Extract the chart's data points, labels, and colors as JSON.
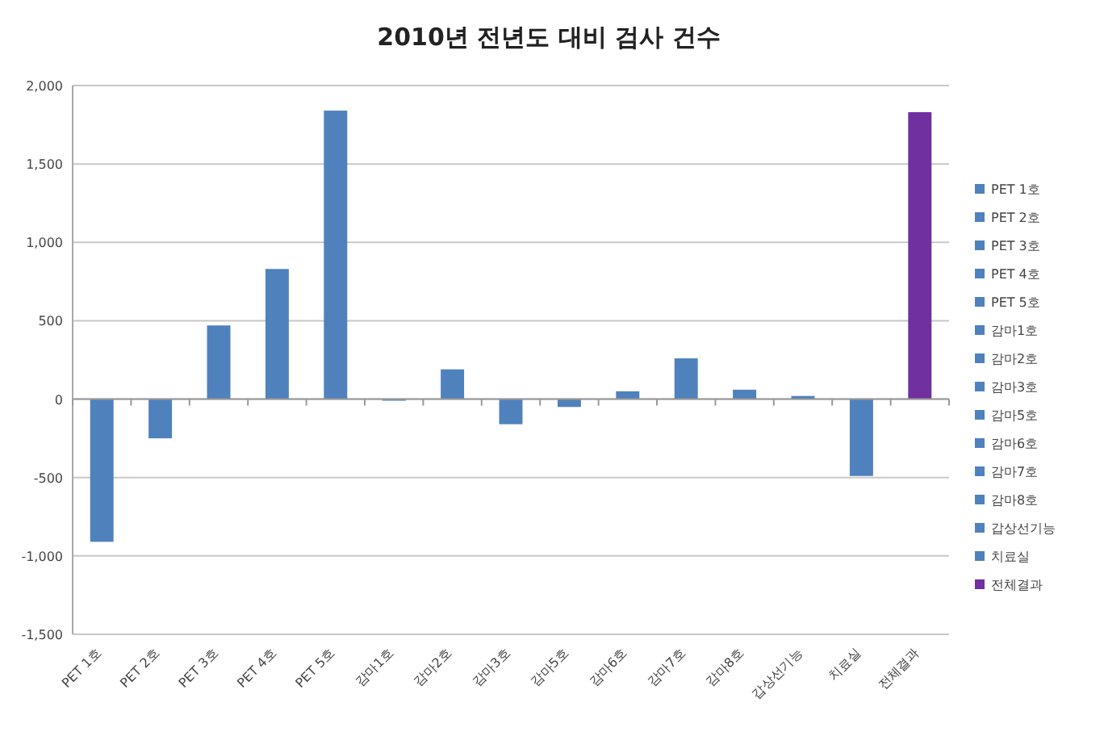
{
  "chart_data": {
    "type": "bar",
    "title": "2010년 전년도 대비 검사 건수",
    "categories": [
      "PET 1호",
      "PET 2호",
      "PET 3호",
      "PET 4호",
      "PET 5호",
      "감마1호",
      "감마2호",
      "감마3호",
      "감마5호",
      "감마6호",
      "감마7호",
      "감마8호",
      "갑상선기능",
      "치료실",
      "전체결과"
    ],
    "series": [
      {
        "name": "PET 1호",
        "color": "#4f81bd",
        "values": [
          -910,
          null,
          null,
          null,
          null,
          null,
          null,
          null,
          null,
          null,
          null,
          null,
          null,
          null,
          null
        ]
      },
      {
        "name": "PET 2호",
        "color": "#4f81bd",
        "values": [
          null,
          -250,
          null,
          null,
          null,
          null,
          null,
          null,
          null,
          null,
          null,
          null,
          null,
          null,
          null
        ]
      },
      {
        "name": "PET 3호",
        "color": "#4f81bd",
        "values": [
          null,
          null,
          470,
          null,
          null,
          null,
          null,
          null,
          null,
          null,
          null,
          null,
          null,
          null,
          null
        ]
      },
      {
        "name": "PET 4호",
        "color": "#4f81bd",
        "values": [
          null,
          null,
          null,
          830,
          null,
          null,
          null,
          null,
          null,
          null,
          null,
          null,
          null,
          null,
          null
        ]
      },
      {
        "name": "PET 5호",
        "color": "#4f81bd",
        "values": [
          null,
          null,
          null,
          null,
          1840,
          null,
          null,
          null,
          null,
          null,
          null,
          null,
          null,
          null,
          null
        ]
      },
      {
        "name": "감마1호",
        "color": "#4f81bd",
        "values": [
          null,
          null,
          null,
          null,
          null,
          -10,
          null,
          null,
          null,
          null,
          null,
          null,
          null,
          null,
          null
        ]
      },
      {
        "name": "감마2호",
        "color": "#4f81bd",
        "values": [
          null,
          null,
          null,
          null,
          null,
          null,
          190,
          null,
          null,
          null,
          null,
          null,
          null,
          null,
          null
        ]
      },
      {
        "name": "감마3호",
        "color": "#4f81bd",
        "values": [
          null,
          null,
          null,
          null,
          null,
          null,
          null,
          -160,
          null,
          null,
          null,
          null,
          null,
          null,
          null
        ]
      },
      {
        "name": "감마5호",
        "color": "#4f81bd",
        "values": [
          null,
          null,
          null,
          null,
          null,
          null,
          null,
          null,
          -50,
          null,
          null,
          null,
          null,
          null,
          null
        ]
      },
      {
        "name": "감마6호",
        "color": "#4f81bd",
        "values": [
          null,
          null,
          null,
          null,
          null,
          null,
          null,
          null,
          null,
          50,
          null,
          null,
          null,
          null,
          null
        ]
      },
      {
        "name": "감마7호",
        "color": "#4f81bd",
        "values": [
          null,
          null,
          null,
          null,
          null,
          null,
          null,
          null,
          null,
          null,
          260,
          null,
          null,
          null,
          null
        ]
      },
      {
        "name": "감마8호",
        "color": "#4f81bd",
        "values": [
          null,
          null,
          null,
          null,
          null,
          null,
          null,
          null,
          null,
          null,
          null,
          60,
          null,
          null,
          null
        ]
      },
      {
        "name": "갑상선기능",
        "color": "#4f81bd",
        "values": [
          null,
          null,
          null,
          null,
          null,
          null,
          null,
          null,
          null,
          null,
          null,
          null,
          20,
          null,
          null
        ]
      },
      {
        "name": "치료실",
        "color": "#4f81bd",
        "values": [
          null,
          null,
          null,
          null,
          null,
          null,
          null,
          null,
          null,
          null,
          null,
          null,
          null,
          -490,
          null
        ]
      },
      {
        "name": "전체결과",
        "color": "#7030a0",
        "values": [
          null,
          null,
          null,
          null,
          null,
          null,
          null,
          null,
          null,
          null,
          null,
          null,
          null,
          null,
          1830
        ]
      }
    ],
    "ylim": [
      -1500,
      2000
    ],
    "yticks": [
      {
        "value": -1500,
        "label": "-1,500"
      },
      {
        "value": -1000,
        "label": "-1,000"
      },
      {
        "value": -500,
        "label": "-500"
      },
      0,
      500,
      {
        "value": 1000,
        "label": "1,000"
      },
      {
        "value": 1500,
        "label": "1,500"
      },
      {
        "value": 2000,
        "label": "2,000"
      }
    ],
    "grid": "y",
    "legend": "right"
  }
}
